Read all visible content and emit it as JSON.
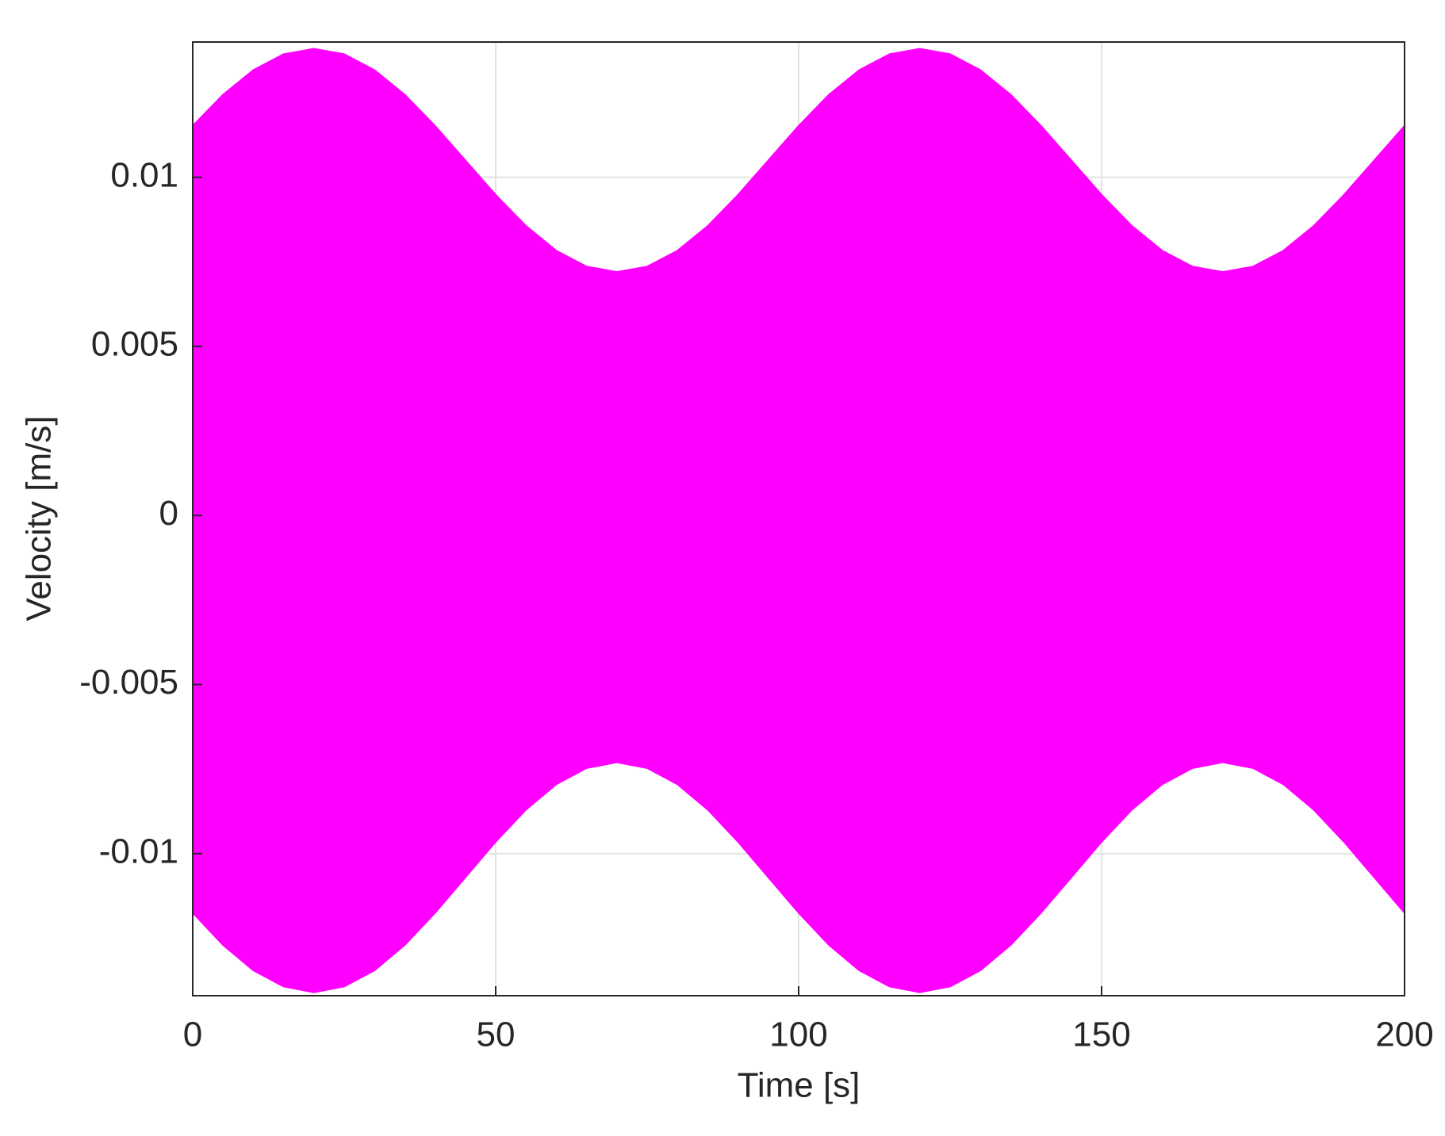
{
  "chart_data": {
    "type": "envelope",
    "xlabel": "Time [s]",
    "ylabel": "Velocity [m/s]",
    "x": [
      0,
      5,
      10,
      15,
      20,
      25,
      30,
      35,
      40,
      45,
      50,
      55,
      60,
      65,
      70,
      75,
      80,
      85,
      90,
      95,
      100,
      105,
      110,
      115,
      120,
      125,
      130,
      135,
      140,
      145,
      150,
      155,
      160,
      165,
      170,
      175,
      180,
      185,
      190,
      195,
      200
    ],
    "series": [
      {
        "color": "#ff00ff",
        "values": [
          0.01152,
          0.01244,
          0.01317,
          0.01364,
          0.0138,
          0.01364,
          0.01317,
          0.01244,
          0.01152,
          0.0105,
          0.00948,
          0.00856,
          0.00783,
          0.00736,
          0.0072,
          0.00736,
          0.00783,
          0.00856,
          0.00948,
          0.0105,
          0.01152,
          0.01244,
          0.01317,
          0.01364,
          0.0138,
          0.01364,
          0.01317,
          0.01244,
          0.01152,
          0.0105,
          0.00948,
          0.00856,
          0.00783,
          0.00736,
          0.0072,
          0.00736,
          0.00783,
          0.00856,
          0.00948,
          0.0105,
          0.01152
        ]
      },
      {
        "color": "#ff00ff",
        "values": [
          -0.01175,
          -0.0127,
          -0.01345,
          -0.01393,
          -0.0141,
          -0.01393,
          -0.01345,
          -0.0127,
          -0.01175,
          -0.0107,
          -0.00965,
          -0.0087,
          -0.00795,
          -0.00747,
          -0.0073,
          -0.00747,
          -0.00795,
          -0.0087,
          -0.00965,
          -0.0107,
          -0.01175,
          -0.0127,
          -0.01345,
          -0.01393,
          -0.0141,
          -0.01393,
          -0.01345,
          -0.0127,
          -0.01175,
          -0.0107,
          -0.00965,
          -0.0087,
          -0.00795,
          -0.00747,
          -0.0073,
          -0.00747,
          -0.00795,
          -0.0087,
          -0.00965,
          -0.0107,
          -0.01175
        ]
      }
    ],
    "xlim": [
      0,
      200
    ],
    "xticks": [
      0,
      50,
      100,
      150,
      200
    ],
    "ylim": [
      -0.0142,
      0.014
    ],
    "yticks": [
      -0.01,
      -0.005,
      0,
      0.005,
      0.01
    ],
    "grid": true
  }
}
